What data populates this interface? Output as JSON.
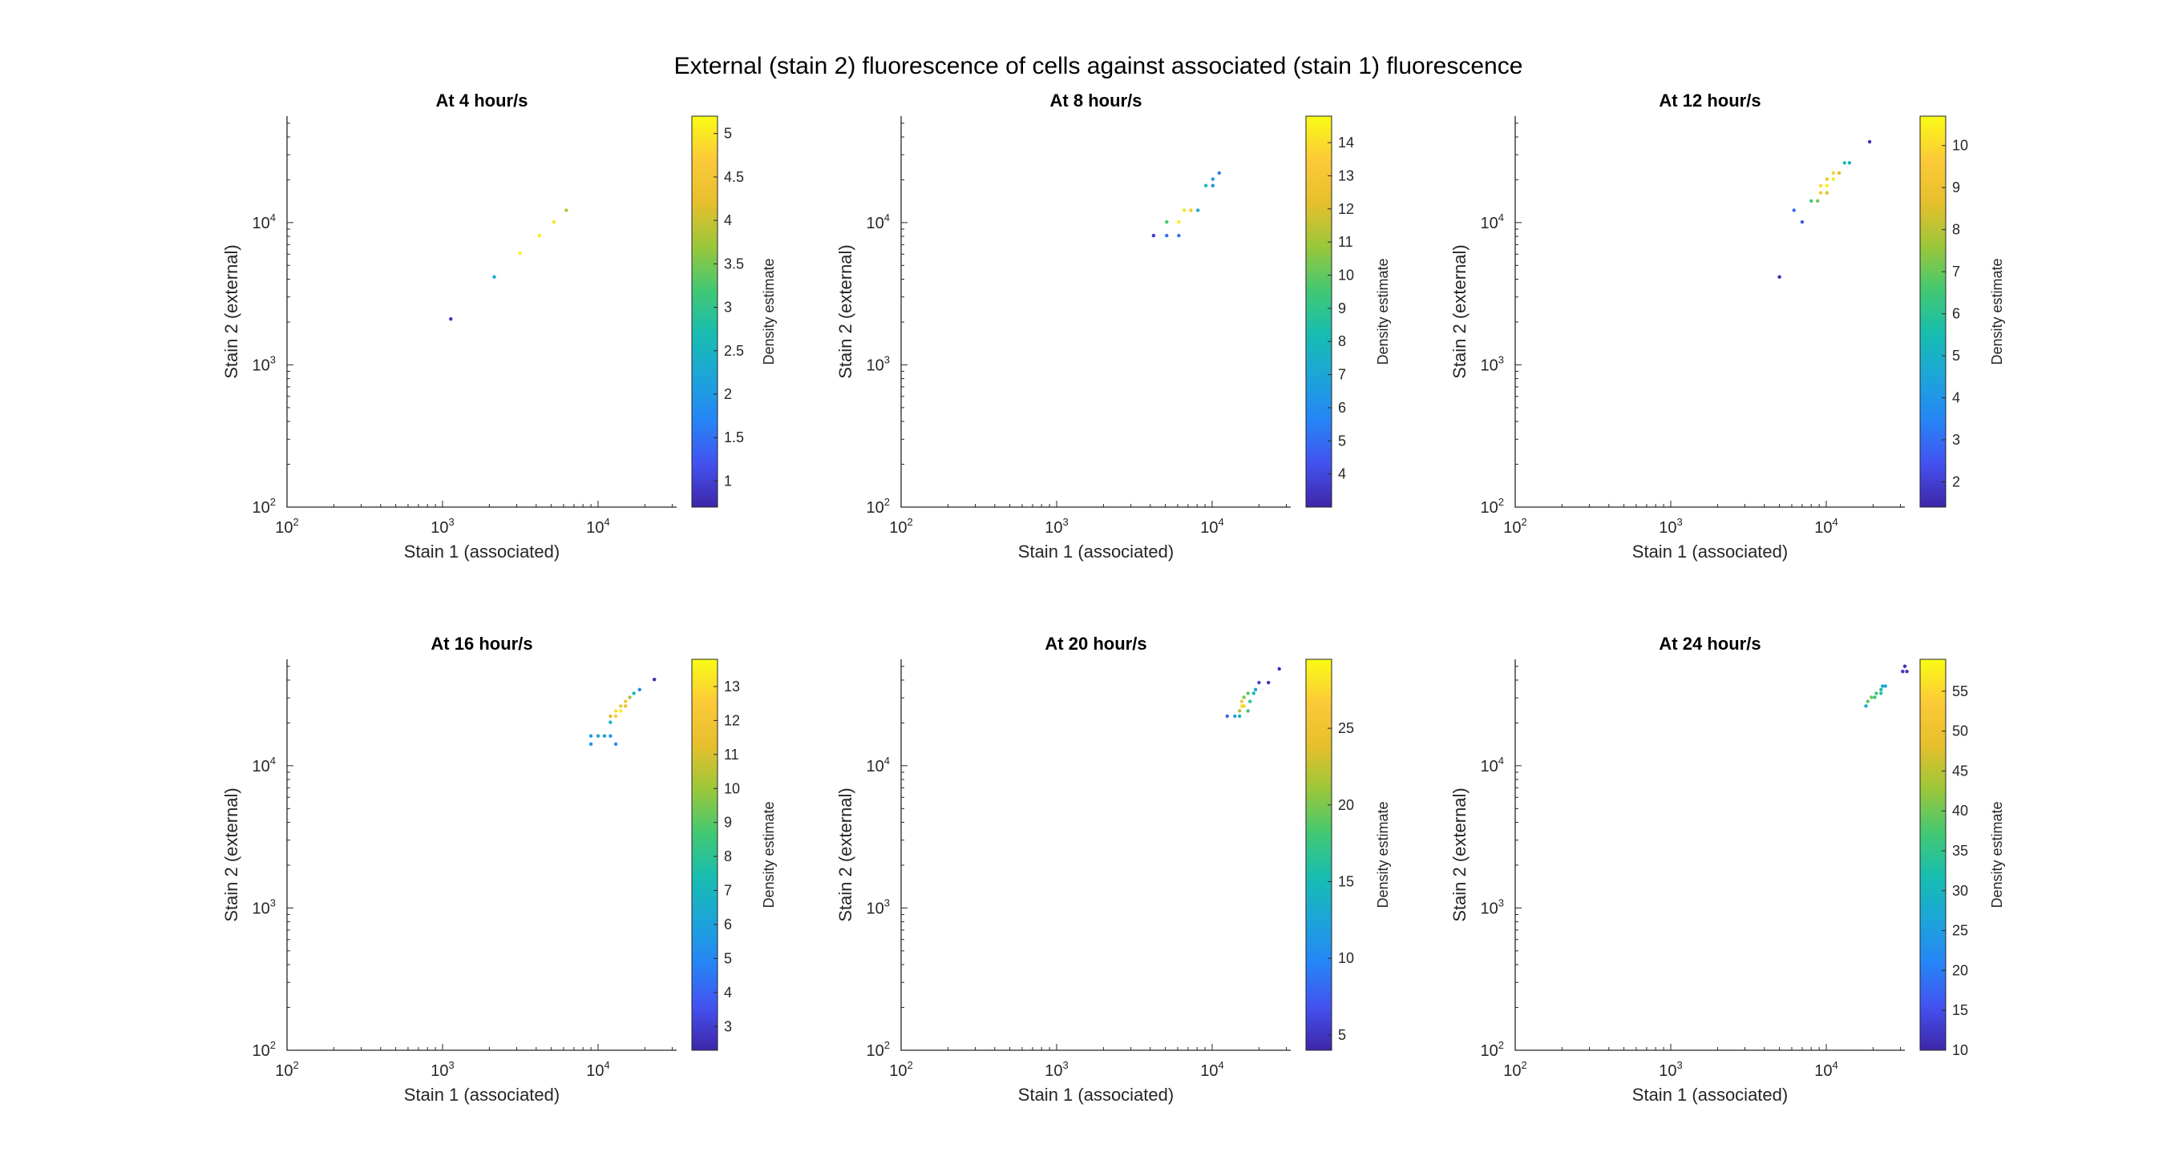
{
  "figure_title": "External (stain 2) fluorescence of cells against associated (stain 1) fluorescence",
  "colormap": [
    "#3e26a8",
    "#4352f0",
    "#2685f6",
    "#1ca5d9",
    "#18bdb0",
    "#43c872",
    "#9bc73a",
    "#e6bf2c",
    "#fcca38",
    "#f9fb15"
  ],
  "chart_data": [
    {
      "type": "scatter",
      "title": "At 4 hour/s",
      "xlabel": "Stain 1 (associated)",
      "ylabel": "Stain 2 (external)",
      "xscale": "log",
      "yscale": "log",
      "xlim": [
        100,
        32000
      ],
      "ylim": [
        100,
        56000
      ],
      "xticks": [
        "10^2",
        "10^3",
        "10^4"
      ],
      "yticks": [
        "10^2",
        "10^3",
        "10^4"
      ],
      "colorbar": {
        "label": "Density estimate",
        "range": [
          0.7,
          5.2
        ],
        "ticks": [
          "1",
          "1.5",
          "2",
          "2.5",
          "3",
          "3.5",
          "4",
          "4.5",
          "5"
        ]
      },
      "points": [
        {
          "x": 1130,
          "y": 2100,
          "d": 0.8
        },
        {
          "x": 2150,
          "y": 4150,
          "d": 2.2
        },
        {
          "x": 3150,
          "y": 6100,
          "d": 5.1
        },
        {
          "x": 4200,
          "y": 8100,
          "d": 5.0
        },
        {
          "x": 5200,
          "y": 10100,
          "d": 4.9
        },
        {
          "x": 6250,
          "y": 12200,
          "d": 3.8
        }
      ]
    },
    {
      "type": "scatter",
      "title": "At 8 hour/s",
      "xlabel": "Stain 1 (associated)",
      "ylabel": "Stain 2 (external)",
      "xscale": "log",
      "yscale": "log",
      "xlim": [
        100,
        32000
      ],
      "ylim": [
        100,
        56000
      ],
      "xticks": [
        "10^2",
        "10^3",
        "10^4"
      ],
      "yticks": [
        "10^2",
        "10^3",
        "10^4"
      ],
      "colorbar": {
        "label": "Density estimate",
        "range": [
          3,
          14.8
        ],
        "ticks": [
          "4",
          "5",
          "6",
          "7",
          "8",
          "9",
          "10",
          "11",
          "12",
          "13",
          "14"
        ]
      },
      "points": [
        {
          "x": 4200,
          "y": 8100,
          "d": 3.5
        },
        {
          "x": 5100,
          "y": 8100,
          "d": 5.0
        },
        {
          "x": 6100,
          "y": 8100,
          "d": 5.2
        },
        {
          "x": 5100,
          "y": 10100,
          "d": 9.5
        },
        {
          "x": 6100,
          "y": 10100,
          "d": 14.5
        },
        {
          "x": 6600,
          "y": 12200,
          "d": 14.2
        },
        {
          "x": 7300,
          "y": 12200,
          "d": 13.0
        },
        {
          "x": 8100,
          "y": 12200,
          "d": 7.0
        },
        {
          "x": 9100,
          "y": 18200,
          "d": 8.0
        },
        {
          "x": 10100,
          "y": 18200,
          "d": 6.0
        },
        {
          "x": 10100,
          "y": 20200,
          "d": 6.5
        },
        {
          "x": 11100,
          "y": 22300,
          "d": 5.5
        }
      ]
    },
    {
      "type": "scatter",
      "title": "At 12 hour/s",
      "xlabel": "Stain 1 (associated)",
      "ylabel": "Stain 2 (external)",
      "xscale": "log",
      "yscale": "log",
      "xlim": [
        100,
        32000
      ],
      "ylim": [
        100,
        56000
      ],
      "xticks": [
        "10^2",
        "10^3",
        "10^4"
      ],
      "yticks": [
        "10^2",
        "10^3",
        "10^4"
      ],
      "colorbar": {
        "label": "Density estimate",
        "range": [
          1.4,
          10.7
        ],
        "ticks": [
          "2",
          "3",
          "4",
          "5",
          "6",
          "7",
          "8",
          "9",
          "10"
        ]
      },
      "points": [
        {
          "x": 5000,
          "y": 4150,
          "d": 1.5
        },
        {
          "x": 6200,
          "y": 12200,
          "d": 3.0
        },
        {
          "x": 7000,
          "y": 10100,
          "d": 2.5
        },
        {
          "x": 8000,
          "y": 14200,
          "d": 6.5
        },
        {
          "x": 8800,
          "y": 14200,
          "d": 7.0
        },
        {
          "x": 9200,
          "y": 16200,
          "d": 9.5
        },
        {
          "x": 10100,
          "y": 16200,
          "d": 8.5
        },
        {
          "x": 9200,
          "y": 18200,
          "d": 10.0
        },
        {
          "x": 10100,
          "y": 18200,
          "d": 10.5
        },
        {
          "x": 10100,
          "y": 20200,
          "d": 9.0
        },
        {
          "x": 11100,
          "y": 20200,
          "d": 10.3
        },
        {
          "x": 11100,
          "y": 22300,
          "d": 9.8
        },
        {
          "x": 12100,
          "y": 22300,
          "d": 8.5
        },
        {
          "x": 13100,
          "y": 26300,
          "d": 5.5
        },
        {
          "x": 14100,
          "y": 26300,
          "d": 5.0
        },
        {
          "x": 19000,
          "y": 37000,
          "d": 1.6
        }
      ]
    },
    {
      "type": "scatter",
      "title": "At 16 hour/s",
      "xlabel": "Stain 1 (associated)",
      "ylabel": "Stain 2 (external)",
      "xscale": "log",
      "yscale": "log",
      "xlim": [
        100,
        32000
      ],
      "ylim": [
        100,
        56000
      ],
      "xticks": [
        "10^2",
        "10^3",
        "10^4"
      ],
      "yticks": [
        "10^2",
        "10^3",
        "10^4"
      ],
      "colorbar": {
        "label": "Density estimate",
        "range": [
          2.3,
          13.8
        ],
        "ticks": [
          "3",
          "4",
          "5",
          "6",
          "7",
          "8",
          "9",
          "10",
          "11",
          "12",
          "13"
        ]
      },
      "points": [
        {
          "x": 9000,
          "y": 14200,
          "d": 5.5
        },
        {
          "x": 9000,
          "y": 16200,
          "d": 5.8
        },
        {
          "x": 10000,
          "y": 16200,
          "d": 6.0
        },
        {
          "x": 11000,
          "y": 16200,
          "d": 6.0
        },
        {
          "x": 12000,
          "y": 16200,
          "d": 5.5
        },
        {
          "x": 13000,
          "y": 14200,
          "d": 5.0
        },
        {
          "x": 12000,
          "y": 20200,
          "d": 7.0
        },
        {
          "x": 12000,
          "y": 22300,
          "d": 11.0
        },
        {
          "x": 13000,
          "y": 22300,
          "d": 12.5
        },
        {
          "x": 13000,
          "y": 24300,
          "d": 13.0
        },
        {
          "x": 14000,
          "y": 24300,
          "d": 13.5
        },
        {
          "x": 14000,
          "y": 26300,
          "d": 12.0
        },
        {
          "x": 15000,
          "y": 26300,
          "d": 11.5
        },
        {
          "x": 15000,
          "y": 28300,
          "d": 12.0
        },
        {
          "x": 16000,
          "y": 30300,
          "d": 10.0
        },
        {
          "x": 17000,
          "y": 32300,
          "d": 7.0
        },
        {
          "x": 18500,
          "y": 34300,
          "d": 5.0
        },
        {
          "x": 23000,
          "y": 40400,
          "d": 2.5
        }
      ]
    },
    {
      "type": "scatter",
      "title": "At 20 hour/s",
      "xlabel": "Stain 1 (associated)",
      "ylabel": "Stain 2 (external)",
      "xscale": "log",
      "yscale": "log",
      "xlim": [
        100,
        32000
      ],
      "ylim": [
        100,
        56000
      ],
      "xticks": [
        "10^2",
        "10^3",
        "10^4"
      ],
      "yticks": [
        "10^2",
        "10^3",
        "10^4"
      ],
      "colorbar": {
        "label": "Density estimate",
        "range": [
          4,
          29.5
        ],
        "ticks": [
          "5",
          "10",
          "15",
          "20",
          "25"
        ]
      },
      "points": [
        {
          "x": 12500,
          "y": 22300,
          "d": 8.0
        },
        {
          "x": 14000,
          "y": 22300,
          "d": 12.0
        },
        {
          "x": 15000,
          "y": 22300,
          "d": 14.0
        },
        {
          "x": 15000,
          "y": 24300,
          "d": 22.0
        },
        {
          "x": 15500,
          "y": 26300,
          "d": 28.0
        },
        {
          "x": 16000,
          "y": 26300,
          "d": 27.0
        },
        {
          "x": 15500,
          "y": 28300,
          "d": 26.0
        },
        {
          "x": 16000,
          "y": 30300,
          "d": 20.0
        },
        {
          "x": 17000,
          "y": 24300,
          "d": 18.0
        },
        {
          "x": 17500,
          "y": 28300,
          "d": 17.0
        },
        {
          "x": 17000,
          "y": 32300,
          "d": 19.0
        },
        {
          "x": 18500,
          "y": 32300,
          "d": 15.0
        },
        {
          "x": 19000,
          "y": 34300,
          "d": 12.0
        },
        {
          "x": 20000,
          "y": 38400,
          "d": 6.0
        },
        {
          "x": 23000,
          "y": 38400,
          "d": 5.0
        },
        {
          "x": 27000,
          "y": 48000,
          "d": 4.5
        }
      ]
    },
    {
      "type": "scatter",
      "title": "At 24 hour/s",
      "xlabel": "Stain 1 (associated)",
      "ylabel": "Stain 2 (external)",
      "xscale": "log",
      "yscale": "log",
      "xlim": [
        100,
        32000
      ],
      "ylim": [
        100,
        56000
      ],
      "xticks": [
        "10^2",
        "10^3",
        "10^4"
      ],
      "yticks": [
        "10^2",
        "10^3",
        "10^4"
      ],
      "colorbar": {
        "label": "Density estimate",
        "range": [
          10,
          59
        ],
        "ticks": [
          "10",
          "15",
          "20",
          "25",
          "30",
          "35",
          "40",
          "45",
          "50",
          "55"
        ]
      },
      "points": [
        {
          "x": 18000,
          "y": 26300,
          "d": 28.0
        },
        {
          "x": 18500,
          "y": 28300,
          "d": 38.0
        },
        {
          "x": 19500,
          "y": 30300,
          "d": 40.0
        },
        {
          "x": 20500,
          "y": 30300,
          "d": 35.0
        },
        {
          "x": 21000,
          "y": 32300,
          "d": 37.0
        },
        {
          "x": 22500,
          "y": 32300,
          "d": 33.0
        },
        {
          "x": 22500,
          "y": 34300,
          "d": 32.0
        },
        {
          "x": 23000,
          "y": 36300,
          "d": 28.0
        },
        {
          "x": 24000,
          "y": 36300,
          "d": 26.0
        },
        {
          "x": 31000,
          "y": 46000,
          "d": 12.0
        },
        {
          "x": 32000,
          "y": 50000,
          "d": 11.0
        },
        {
          "x": 33000,
          "y": 46000,
          "d": 12.0
        }
      ]
    }
  ]
}
